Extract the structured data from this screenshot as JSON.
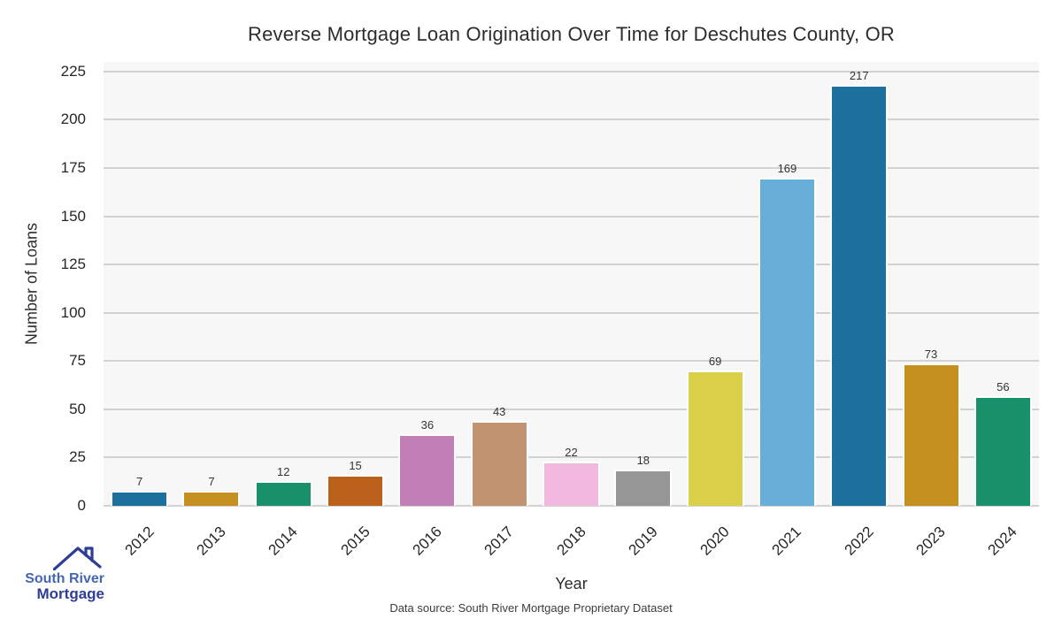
{
  "logo": {
    "name1": "South River",
    "name2": "Mortgage"
  },
  "footer": {
    "source_note": "Data source: South River Mortgage Proprietary Dataset"
  },
  "chart_data": {
    "type": "bar",
    "title": "Reverse Mortgage Loan Origination Over Time for Deschutes County, OR",
    "xlabel": "Year",
    "ylabel": "Number of Loans",
    "categories": [
      "2012",
      "2013",
      "2014",
      "2015",
      "2016",
      "2017",
      "2018",
      "2019",
      "2020",
      "2021",
      "2022",
      "2023",
      "2024"
    ],
    "values": [
      7,
      7,
      12,
      15,
      36,
      43,
      22,
      18,
      69,
      169,
      217,
      73,
      56
    ],
    "value_labels_shown": true,
    "yticks": [
      0,
      25,
      50,
      75,
      100,
      125,
      150,
      175,
      200,
      225
    ],
    "ylim": [
      0,
      230
    ],
    "grid": "horizontal",
    "legend": "none",
    "bar_colors": [
      "#1b709d",
      "#c5901f",
      "#18906b",
      "#bc611b",
      "#c27fb6",
      "#c19370",
      "#f3b8dd",
      "#969696",
      "#d9cf48",
      "#67afd9",
      "#1b709d",
      "#c5901f",
      "#18906b"
    ],
    "colors": {
      "plot_background": "#f7f7f7",
      "figure_background": "#ffffff",
      "gridline": "#d2d2d2",
      "text": "#262626",
      "logo_blue": "#4766b0",
      "logo_navy": "#2e3d96"
    }
  }
}
